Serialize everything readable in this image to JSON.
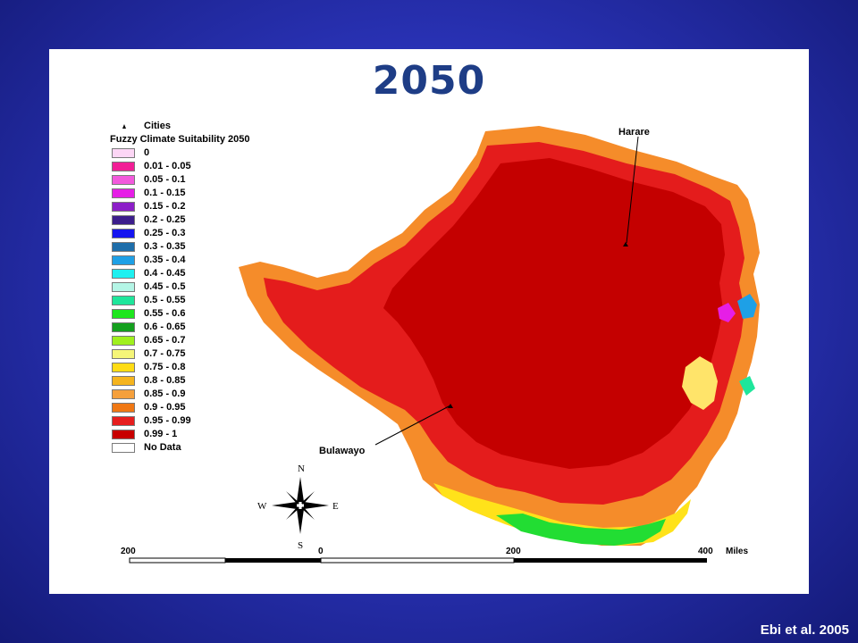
{
  "title": "2050",
  "legend": {
    "cities_label": "Cities",
    "title": "Fuzzy Climate Suitability 2050",
    "classes": [
      {
        "label": "0",
        "color": "#fcd6f5"
      },
      {
        "label": "0.01 - 0.05",
        "color": "#f21e96"
      },
      {
        "label": "0.05 - 0.1",
        "color": "#f25adc"
      },
      {
        "label": "0.1 - 0.15",
        "color": "#e61ee6"
      },
      {
        "label": "0.15 - 0.2",
        "color": "#8c1ec8"
      },
      {
        "label": "0.2 - 0.25",
        "color": "#3c1e8c"
      },
      {
        "label": "0.25 - 0.3",
        "color": "#1414f0"
      },
      {
        "label": "0.3 - 0.35",
        "color": "#1e6eaa"
      },
      {
        "label": "0.35 - 0.4",
        "color": "#1ea0e6"
      },
      {
        "label": "0.4 - 0.45",
        "color": "#1ef0f0"
      },
      {
        "label": "0.45 - 0.5",
        "color": "#b4f5e6"
      },
      {
        "label": "0.5 - 0.55",
        "color": "#1ee69b"
      },
      {
        "label": "0.55 - 0.6",
        "color": "#1ee61e"
      },
      {
        "label": "0.6 - 0.65",
        "color": "#14a01e"
      },
      {
        "label": "0.65 - 0.7",
        "color": "#a0f01e"
      },
      {
        "label": "0.7 - 0.75",
        "color": "#f5f578"
      },
      {
        "label": "0.75 - 0.8",
        "color": "#ffdc14"
      },
      {
        "label": "0.8 - 0.85",
        "color": "#f5b41e"
      },
      {
        "label": "0.85 - 0.9",
        "color": "#f5a03c"
      },
      {
        "label": "0.9 - 0.95",
        "color": "#f07814"
      },
      {
        "label": "0.95 - 0.99",
        "color": "#e61e1e"
      },
      {
        "label": "0.99 - 1",
        "color": "#c80000"
      },
      {
        "label": "No Data",
        "color": "#ffffff"
      }
    ]
  },
  "cities": {
    "harare": "Harare",
    "bulawayo": "Bulawayo"
  },
  "compass": {
    "n": "N",
    "s": "S",
    "e": "E",
    "w": "W"
  },
  "scale_bar": {
    "labels": [
      "200",
      "0",
      "200",
      "400"
    ],
    "unit": "Miles"
  },
  "credit": "Ebi et al. 2005"
}
